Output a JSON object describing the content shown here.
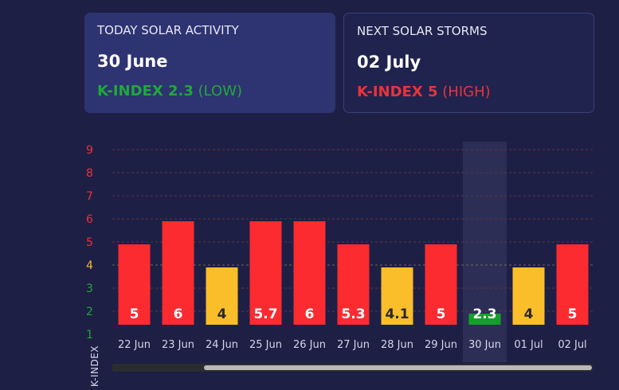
{
  "today": {
    "label": "TODAY SOLAR ACTIVITY",
    "date": "30 June",
    "kindex_label": "K-INDEX 2.3",
    "kindex_level": "(LOW)",
    "color": "#1fa83a"
  },
  "next_storm": {
    "label": "NEXT SOLAR STORMS",
    "date": "02 July",
    "kindex_label": "K-INDEX 5",
    "kindex_level": "(HIGH)",
    "color": "#e8333a"
  },
  "chart_data": {
    "type": "bar",
    "ylabel": "K-INDEX",
    "ylim": [
      1,
      9
    ],
    "y_ticks": [
      {
        "value": 1,
        "color": "#1fa83a"
      },
      {
        "value": 2,
        "color": "#1fa83a"
      },
      {
        "value": 3,
        "color": "#1fa83a"
      },
      {
        "value": 4,
        "color": "#f3b92a"
      },
      {
        "value": 5,
        "color": "#e8333a"
      },
      {
        "value": 6,
        "color": "#e8333a"
      },
      {
        "value": 7,
        "color": "#e8333a"
      },
      {
        "value": 8,
        "color": "#e8333a"
      },
      {
        "value": 9,
        "color": "#e8333a"
      }
    ],
    "categories": [
      "22 Jun",
      "23 Jun",
      "24 Jun",
      "25 Jun",
      "26 Jun",
      "27 Jun",
      "28 Jun",
      "29 Jun",
      "30 Jun",
      "01 Jul",
      "02 Jul"
    ],
    "values": [
      5,
      6,
      4,
      5.7,
      6,
      5.3,
      4.1,
      5,
      2.3,
      4,
      5
    ],
    "bar_levels": [
      5,
      6,
      4,
      6,
      6,
      5,
      4,
      5,
      2,
      4,
      5
    ],
    "labels": [
      "5",
      "6",
      "4",
      "5.7",
      "6",
      "5.3",
      "4.1",
      "5",
      "2.3",
      "4",
      "5"
    ],
    "colors": [
      "#fb2b30",
      "#fb2b30",
      "#fbbe2b",
      "#fb2b30",
      "#fb2b30",
      "#fb2b30",
      "#fbbe2b",
      "#fb2b30",
      "#13a028",
      "#fbbe2b",
      "#fb2b30"
    ],
    "highlight_index": 8,
    "grid": true
  }
}
